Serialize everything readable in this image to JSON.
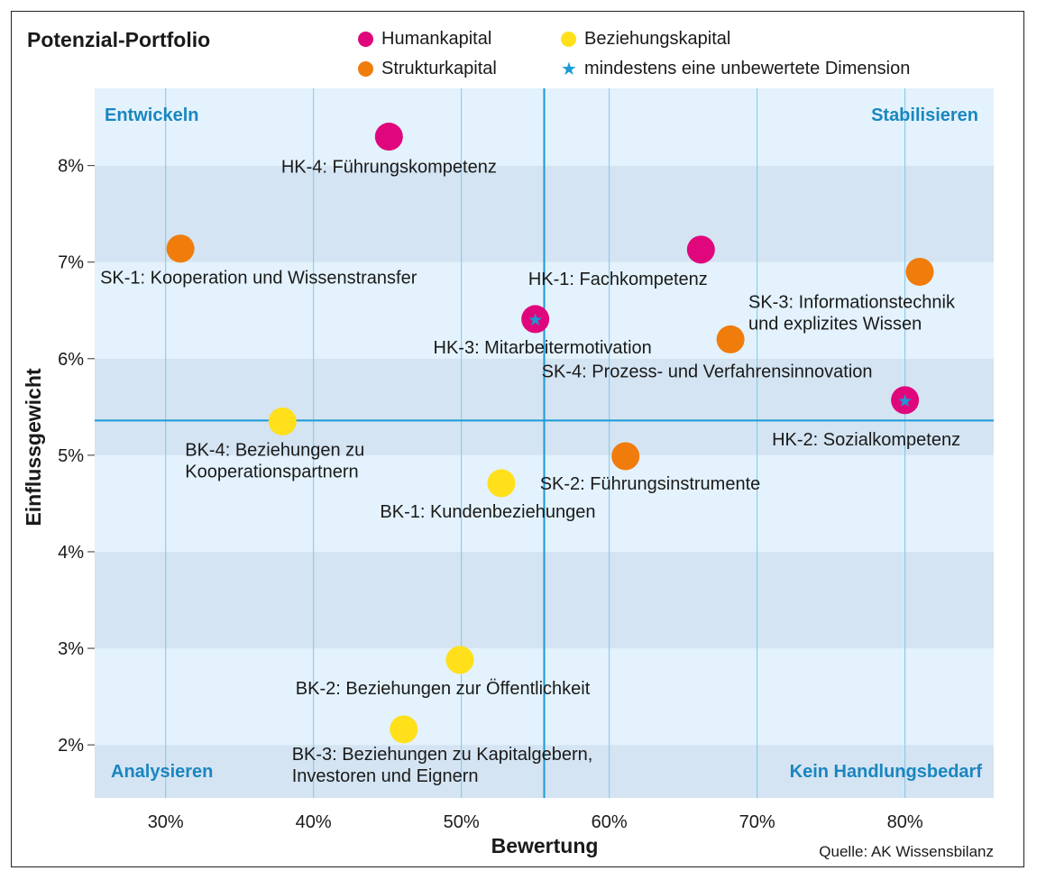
{
  "chart_data": {
    "type": "scatter",
    "title": "Potenzial-Portfolio",
    "xlabel": "Bewertung",
    "ylabel": "Einflussgewicht",
    "xlim": [
      25.2,
      86.0
    ],
    "ylim": [
      1.45,
      8.8
    ],
    "x_ticks": [
      30,
      40,
      50,
      60,
      70,
      80
    ],
    "x_tick_labels": [
      "30%",
      "40%",
      "50%",
      "60%",
      "70%",
      "80%"
    ],
    "y_ticks": [
      2,
      3,
      4,
      5,
      6,
      7,
      8
    ],
    "y_tick_labels": [
      "2%",
      "3%",
      "4%",
      "5%",
      "6%",
      "7%",
      "8%"
    ],
    "threshold_x": 55.6,
    "threshold_y": 5.36,
    "colors": {
      "human": "#e0077d",
      "struktur": "#f07c0c",
      "beziehung": "#ffe01a",
      "star": "#1a9ad6",
      "band_dark": "#d4e4f2",
      "band_light": "#e3f2fc",
      "grid": "#7fc6ea",
      "threshold": "#1a9ad6",
      "quadrant_text": "#1a86c0"
    },
    "legend": {
      "human": "Humankapital",
      "struktur": "Strukturkapital",
      "beziehung": "Beziehungskapital",
      "star": "mindestens eine unbewertete Dimension"
    },
    "quadrants": {
      "top_left": "Entwickeln",
      "top_right": "Stabilisieren",
      "bottom_left": "Analysieren",
      "bottom_right": "Kein Handlungsbedarf"
    },
    "series": [
      {
        "name": "Humankapital",
        "color_key": "human",
        "points": [
          {
            "id": "HK-4",
            "x": 45.1,
            "y": 8.3,
            "label": [
              "HK-4: Führungskompetenz"
            ],
            "star": false
          },
          {
            "id": "HK-1",
            "x": 66.2,
            "y": 7.13,
            "label": [
              "HK-1: Fachkompetenz"
            ],
            "star": false
          },
          {
            "id": "HK-3",
            "x": 55.0,
            "y": 6.41,
            "label": [
              "HK-3: Mitarbeitermotivation"
            ],
            "star": true
          },
          {
            "id": "HK-2",
            "x": 80.0,
            "y": 5.57,
            "label": [
              "HK-2: Sozialkompetenz"
            ],
            "star": true
          }
        ]
      },
      {
        "name": "Strukturkapital",
        "color_key": "struktur",
        "points": [
          {
            "id": "SK-1",
            "x": 31.0,
            "y": 7.14,
            "label": [
              "SK-1: Kooperation und Wissenstransfer"
            ],
            "star": false
          },
          {
            "id": "SK-3",
            "x": 81.0,
            "y": 6.9,
            "label": [
              "SK-3: Informationstechnik",
              "und explizites Wissen"
            ],
            "star": false
          },
          {
            "id": "SK-4",
            "x": 68.2,
            "y": 6.2,
            "label": [
              "SK-4: Prozess- und Verfahrensinnovation"
            ],
            "star": false
          },
          {
            "id": "SK-2",
            "x": 61.1,
            "y": 4.99,
            "label": [
              "SK-2: Führungsinstrumente"
            ],
            "star": false
          }
        ]
      },
      {
        "name": "Beziehungskapital",
        "color_key": "beziehung",
        "points": [
          {
            "id": "BK-4",
            "x": 37.9,
            "y": 5.35,
            "label": [
              "BK-4: Beziehungen zu",
              "Kooperationspartnern"
            ],
            "star": false
          },
          {
            "id": "BK-1",
            "x": 52.7,
            "y": 4.71,
            "label": [
              "BK-1: Kundenbeziehungen"
            ],
            "star": false
          },
          {
            "id": "BK-2",
            "x": 49.9,
            "y": 2.88,
            "label": [
              "BK-2: Beziehungen zur Öffentlichkeit"
            ],
            "star": false
          },
          {
            "id": "BK-3",
            "x": 46.1,
            "y": 2.16,
            "label": [
              "BK-3: Beziehungen zu Kapitalgebern,",
              "Investoren und Eignern"
            ],
            "star": false
          }
        ]
      }
    ],
    "source": "Quelle: AK Wissensbilanz"
  }
}
